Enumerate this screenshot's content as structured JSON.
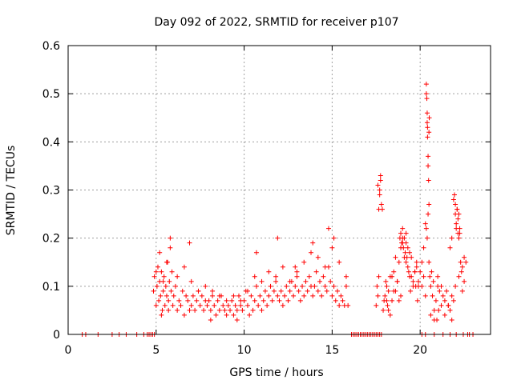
{
  "chart_data": {
    "type": "scatter",
    "title": "Day 092 of 2022, SRMTID for receiver p107",
    "xlabel": "GPS time / hours",
    "ylabel": "SRMTID / TECUs",
    "xlim": [
      0,
      24
    ],
    "ylim": [
      0,
      0.6
    ],
    "xticks": [
      0,
      5,
      10,
      15,
      20
    ],
    "xtick_labels": [
      "0",
      "5",
      "10",
      "15",
      "20"
    ],
    "yticks": [
      0,
      0.1,
      0.2,
      0.3,
      0.4,
      0.5,
      0.6
    ],
    "ytick_labels": [
      "0",
      "0.1",
      "0.2",
      "0.3",
      "0.4",
      "0.5",
      "0.6"
    ],
    "grid": true,
    "marker": "+",
    "color": "#ff0000",
    "series": [
      {
        "name": "SRMTID",
        "x": [
          0.8,
          1.0,
          1.7,
          2.5,
          2.9,
          3.3,
          3.9,
          4.3,
          4.5,
          4.6,
          4.7,
          4.8,
          4.9,
          4.85,
          4.9,
          5.0,
          5.05,
          5.1,
          5.15,
          5.2,
          5.25,
          5.3,
          5.35,
          5.4,
          5.45,
          5.5,
          5.55,
          5.6,
          5.65,
          5.7,
          5.75,
          5.8,
          5.85,
          5.9,
          5.95,
          6.0,
          6.1,
          6.2,
          6.3,
          6.4,
          6.5,
          6.6,
          6.7,
          6.8,
          6.9,
          7.0,
          7.1,
          7.2,
          7.3,
          7.4,
          7.5,
          7.6,
          7.7,
          7.8,
          7.9,
          8.0,
          8.1,
          8.2,
          8.3,
          8.4,
          8.5,
          8.6,
          8.7,
          8.8,
          8.9,
          9.0,
          9.1,
          9.2,
          9.3,
          9.4,
          9.5,
          9.6,
          9.7,
          9.8,
          9.9,
          10.0,
          10.1,
          10.2,
          10.3,
          10.4,
          10.5,
          10.6,
          10.7,
          10.8,
          10.9,
          11.0,
          11.1,
          11.2,
          11.3,
          11.4,
          11.5,
          11.6,
          11.7,
          11.8,
          11.9,
          12.0,
          12.1,
          12.2,
          12.3,
          12.4,
          12.5,
          12.6,
          12.7,
          12.8,
          12.9,
          13.0,
          13.1,
          13.2,
          13.3,
          13.4,
          13.5,
          13.6,
          13.7,
          13.8,
          13.9,
          14.0,
          14.1,
          14.2,
          14.3,
          14.4,
          14.5,
          14.6,
          14.7,
          14.8,
          14.9,
          15.0,
          15.1,
          15.2,
          15.3,
          15.4,
          15.5,
          15.6,
          15.7,
          15.8,
          15.9,
          5.0,
          5.2,
          5.4,
          5.6,
          5.8,
          6.2,
          6.6,
          7.0,
          7.4,
          7.8,
          8.2,
          8.6,
          9.0,
          9.4,
          9.8,
          10.2,
          10.6,
          11.0,
          11.4,
          11.8,
          12.2,
          12.6,
          13.0,
          13.4,
          13.8,
          14.2,
          14.6,
          15.0,
          15.4,
          15.8,
          5.3,
          5.7,
          6.9,
          8.1,
          9.6,
          10.7,
          11.9,
          12.9,
          13.9,
          14.8,
          15.1,
          16.1,
          16.2,
          16.3,
          16.4,
          16.5,
          16.6,
          16.7,
          16.8,
          16.9,
          17.0,
          17.1,
          17.2,
          17.3,
          17.4,
          17.5,
          17.6,
          17.7,
          17.8,
          17.5,
          17.55,
          17.6,
          17.65,
          17.7,
          17.75,
          17.8,
          17.85,
          17.9,
          17.95,
          17.6,
          17.65,
          17.7,
          17.75,
          18.0,
          18.1,
          18.2,
          18.3,
          18.4,
          18.5,
          18.6,
          18.7,
          18.8,
          18.9,
          19.0,
          19.1,
          19.2,
          19.3,
          19.4,
          19.5,
          19.6,
          19.7,
          19.8,
          19.9,
          18.85,
          18.9,
          18.95,
          19.0,
          19.05,
          19.1,
          19.15,
          19.2,
          19.25,
          19.3,
          18.2,
          18.4,
          18.6,
          18.8,
          19.0,
          19.2,
          19.4,
          19.6,
          19.8,
          18.3,
          18.5,
          18.7,
          19.5,
          19.7,
          19.9,
          18.1,
          18.9,
          20.0,
          20.1,
          20.2,
          20.3,
          20.35,
          20.4,
          20.45,
          20.5,
          20.55,
          20.6,
          20.7,
          20.8,
          20.9,
          21.0,
          21.1,
          21.2,
          21.3,
          21.4,
          21.5,
          21.6,
          21.7,
          21.8,
          21.9,
          20.35,
          20.35,
          20.38,
          20.4,
          20.4,
          20.42,
          20.42,
          20.45,
          20.45,
          20.48,
          20.5,
          20.5,
          20.52,
          20.3,
          20.1,
          20.2,
          20.6,
          20.8,
          21.0,
          21.2,
          21.4,
          21.6,
          21.8,
          21.9,
          21.95,
          22.0,
          22.05,
          22.1,
          22.15,
          22.2,
          22.25,
          22.3,
          22.35,
          22.4,
          22.5,
          22.6,
          21.95,
          22.0,
          22.05,
          22.1,
          22.15,
          22.2,
          22.25,
          21.7,
          21.8,
          22.0,
          22.2,
          22.4,
          22.5,
          18.05,
          18.15,
          19.35,
          19.45,
          19.75,
          19.85,
          20.65,
          20.75,
          20.95,
          21.05,
          20.1,
          20.3,
          20.8,
          21.3,
          21.7,
          22.05,
          22.45,
          22.7,
          22.8,
          23.0
        ],
        "y": [
          0,
          0,
          0,
          0,
          0,
          0,
          0,
          0,
          0,
          0,
          0,
          0,
          0,
          0.09,
          0.12,
          0.06,
          0.1,
          0.14,
          0.07,
          0.11,
          0.08,
          0.13,
          0.05,
          0.09,
          0.12,
          0.06,
          0.1,
          0.08,
          0.15,
          0.07,
          0.11,
          0.18,
          0.09,
          0.13,
          0.06,
          0.08,
          0.1,
          0.05,
          0.07,
          0.06,
          0.09,
          0.04,
          0.08,
          0.07,
          0.05,
          0.06,
          0.08,
          0.05,
          0.07,
          0.09,
          0.06,
          0.08,
          0.05,
          0.07,
          0.06,
          0.07,
          0.05,
          0.08,
          0.06,
          0.04,
          0.07,
          0.05,
          0.08,
          0.06,
          0.05,
          0.04,
          0.06,
          0.05,
          0.07,
          0.04,
          0.06,
          0.05,
          0.08,
          0.06,
          0.05,
          0.07,
          0.09,
          0.06,
          0.04,
          0.08,
          0.05,
          0.07,
          0.1,
          0.06,
          0.08,
          0.05,
          0.07,
          0.09,
          0.06,
          0.08,
          0.1,
          0.07,
          0.09,
          0.11,
          0.08,
          0.07,
          0.09,
          0.06,
          0.08,
          0.1,
          0.07,
          0.09,
          0.11,
          0.08,
          0.1,
          0.12,
          0.09,
          0.07,
          0.1,
          0.08,
          0.11,
          0.09,
          0.12,
          0.1,
          0.08,
          0.1,
          0.13,
          0.09,
          0.11,
          0.08,
          0.12,
          0.1,
          0.09,
          0.14,
          0.11,
          0.08,
          0.1,
          0.07,
          0.09,
          0.06,
          0.08,
          0.07,
          0.06,
          0.1,
          0.06,
          0.13,
          0.17,
          0.11,
          0.15,
          0.2,
          0.12,
          0.14,
          0.11,
          0.09,
          0.1,
          0.09,
          0.08,
          0.07,
          0.08,
          0.07,
          0.09,
          0.12,
          0.11,
          0.13,
          0.12,
          0.14,
          0.11,
          0.13,
          0.15,
          0.17,
          0.16,
          0.14,
          0.18,
          0.15,
          0.12,
          0.04,
          0.05,
          0.19,
          0.03,
          0.03,
          0.17,
          0.2,
          0.14,
          0.19,
          0.22,
          0.2,
          0,
          0,
          0,
          0,
          0,
          0,
          0,
          0,
          0,
          0,
          0,
          0,
          0,
          0,
          0,
          0,
          0,
          0,
          0.06,
          0.1,
          0.08,
          0.12,
          0.3,
          0.33,
          0.27,
          0.26,
          0.05,
          0.07,
          0.31,
          0.26,
          0.29,
          0.32,
          0.08,
          0.1,
          0.05,
          0.12,
          0.07,
          0.13,
          0.09,
          0.11,
          0.15,
          0.18,
          0.2,
          0.16,
          0.21,
          0.14,
          0.17,
          0.12,
          0.1,
          0.13,
          0.15,
          0.11,
          0.2,
          0.21,
          0.19,
          0.22,
          0.18,
          0.2,
          0.17,
          0.19,
          0.16,
          0.18,
          0.09,
          0.12,
          0.16,
          0.07,
          0.19,
          0.15,
          0.12,
          0.11,
          0.14,
          0.04,
          0.09,
          0.11,
          0.16,
          0.13,
          0.1,
          0.07,
          0.08,
          0.13,
          0.1,
          0.12,
          0.08,
          0.22,
          0.2,
          0.25,
          0.15,
          0.12,
          0.1,
          0.08,
          0.05,
          0.07,
          0.1,
          0.09,
          0.06,
          0.08,
          0.07,
          0.09,
          0.06,
          0.05,
          0.08,
          0.07,
          0.5,
          0.52,
          0.49,
          0.46,
          0.44,
          0.43,
          0.41,
          0.37,
          0.35,
          0.32,
          0.27,
          0.42,
          0.45,
          0.23,
          0.15,
          0.18,
          0.04,
          0.03,
          0.12,
          0.1,
          0.04,
          0.06,
          0.03,
          0.28,
          0.29,
          0.25,
          0.22,
          0.26,
          0.24,
          0.2,
          0.21,
          0.15,
          0.13,
          0.14,
          0.16,
          0.15,
          0.29,
          0.27,
          0.23,
          0.26,
          0.21,
          0.25,
          0.22,
          0.18,
          0.2,
          0.1,
          0.12,
          0.09,
          0.11,
          0.11,
          0.06,
          0.13,
          0.09,
          0.1,
          0.07,
          0.13,
          0.11,
          0.03,
          0.05,
          0,
          0,
          0,
          0,
          0,
          0,
          0,
          0,
          0,
          0
        ]
      }
    ]
  }
}
